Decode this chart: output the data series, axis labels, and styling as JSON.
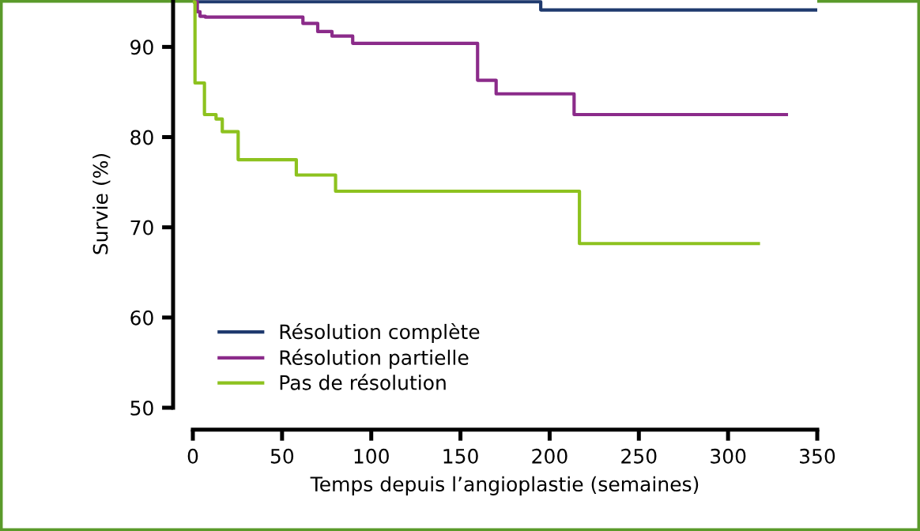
{
  "chart_data": {
    "type": "step",
    "xlabel": "Temps depuis l’angioplastie (semaines)",
    "ylabel": "Survie (%)",
    "xlim": [
      0,
      350
    ],
    "xticks": [
      0,
      50,
      100,
      150,
      200,
      250,
      300,
      350
    ],
    "ylim": [
      50,
      95.2
    ],
    "yticks": [
      50,
      60,
      70,
      80,
      90
    ],
    "grid": false,
    "legend": "bottom left",
    "marker": "none",
    "line_style": "solid",
    "series": [
      {
        "name": "Résolution complète",
        "color": "#1f3a6e",
        "x": [
          0,
          195,
          350
        ],
        "values": [
          95,
          94.1,
          94.1
        ]
      },
      {
        "name": "Résolution partielle",
        "color": "#8b2b8a",
        "x": [
          0,
          2.5,
          4,
          7,
          61.7,
          70,
          78,
          89.6,
          159.6,
          170,
          213.7,
          332.7
        ],
        "values": [
          95,
          93.9,
          93.4,
          93.3,
          92.6,
          91.7,
          91.2,
          90.4,
          86.3,
          84.8,
          82.5,
          82.5
        ]
      },
      {
        "name": "Pas de résolution",
        "color": "#8dc21f",
        "x": [
          0,
          1.2,
          6.5,
          13,
          16.5,
          25.4,
          58,
          80,
          216.7,
          317
        ],
        "values": [
          95,
          86,
          82.5,
          82,
          80.6,
          77.5,
          75.8,
          74,
          68.2,
          68.2
        ]
      }
    ]
  }
}
